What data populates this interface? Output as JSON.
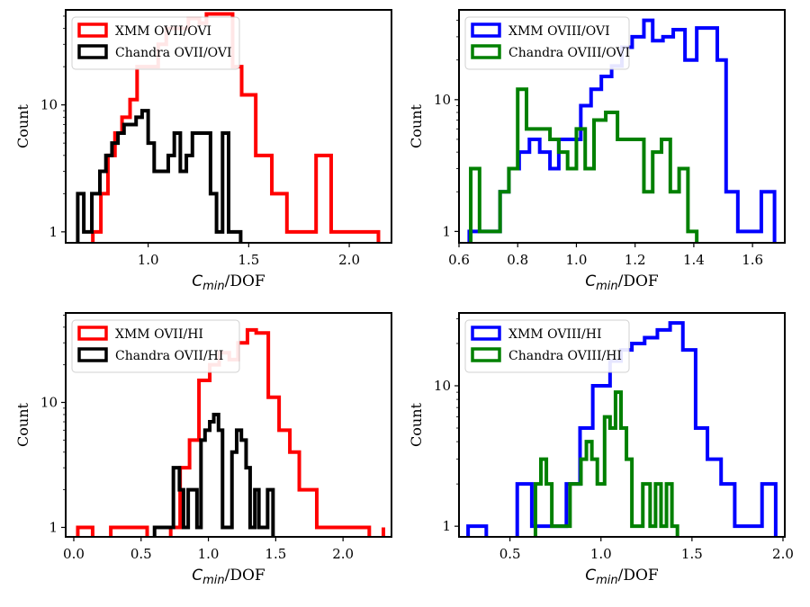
{
  "chart_data": [
    {
      "type": "histogram",
      "xscale": "linear",
      "yscale": "log",
      "xlim": [
        0.59,
        2.21
      ],
      "ylim": [
        0.82,
        56
      ],
      "xticks": [
        1.0,
        1.5,
        2.0
      ],
      "xtick_labels": [
        "1.0",
        "1.5",
        "2.0"
      ],
      "yticks": [
        1,
        10
      ],
      "ytick_labels": [
        "1",
        "10"
      ],
      "xlabel_main": "C",
      "xlabel_sub": "min",
      "xlabel_rest": "/DOF",
      "ylabel": "Count",
      "legend_position": "top-left",
      "series": [
        {
          "name": "XMM OVII/OVI",
          "color": "#ff0000",
          "edges": [
            0.725,
            0.765,
            0.8,
            0.835,
            0.87,
            0.91,
            0.945,
            1.05,
            1.09,
            1.2,
            1.255,
            1.29,
            1.42,
            1.465,
            1.535,
            1.615,
            1.69,
            1.76,
            1.835,
            1.91,
            1.99,
            2.07,
            2.145
          ],
          "counts": [
            1,
            2,
            4,
            6,
            8,
            11,
            20,
            30,
            40,
            48,
            44,
            52,
            20,
            12,
            4,
            2,
            1,
            1,
            4,
            1,
            1,
            1
          ]
        },
        {
          "name": "Chandra OVII/OVI",
          "color": "#000000",
          "edges": [
            0.65,
            0.68,
            0.72,
            0.76,
            0.79,
            0.82,
            0.85,
            0.88,
            0.91,
            0.94,
            0.97,
            1.0,
            1.03,
            1.07,
            1.1,
            1.13,
            1.16,
            1.19,
            1.22,
            1.25,
            1.28,
            1.31,
            1.34,
            1.37,
            1.4,
            1.43,
            1.46
          ],
          "counts": [
            2,
            1,
            2,
            3,
            4,
            5,
            6,
            7,
            7,
            8,
            9,
            5,
            3,
            3,
            4,
            6,
            3,
            4,
            6,
            6,
            6,
            2,
            1,
            6,
            1,
            1
          ]
        }
      ]
    },
    {
      "type": "histogram",
      "xscale": "linear",
      "yscale": "log",
      "xlim": [
        0.6,
        1.71
      ],
      "ylim": [
        0.82,
        48
      ],
      "xticks": [
        0.6,
        0.8,
        1.0,
        1.2,
        1.4,
        1.6
      ],
      "xtick_labels": [
        "0.6",
        "0.8",
        "1.0",
        "1.2",
        "1.4",
        "1.6"
      ],
      "yticks": [
        1,
        10
      ],
      "ytick_labels": [
        "1",
        "10"
      ],
      "xlabel_main": "C",
      "xlabel_sub": "min",
      "xlabel_rest": "/DOF",
      "ylabel": "Count",
      "legend_position": "top-left",
      "series": [
        {
          "name": "XMM OVIII/OVI",
          "color": "#0000ff",
          "edges": [
            0.635,
            0.665,
            0.7,
            0.74,
            0.77,
            0.805,
            0.84,
            0.875,
            0.91,
            0.94,
            0.975,
            1.015,
            1.05,
            1.085,
            1.12,
            1.155,
            1.19,
            1.23,
            1.26,
            1.295,
            1.33,
            1.37,
            1.41,
            1.445,
            1.48,
            1.51,
            1.55,
            1.59,
            1.63,
            1.675
          ],
          "counts": [
            1,
            1,
            1,
            2,
            3,
            4,
            5,
            4,
            3,
            5,
            5,
            9,
            12,
            15,
            18,
            25,
            30,
            40,
            28,
            30,
            34,
            20,
            35,
            35,
            20,
            2,
            1,
            1,
            2
          ]
        },
        {
          "name": "Chandra OVIII/OVI",
          "color": "#008000",
          "edges": [
            0.64,
            0.67,
            0.7,
            0.74,
            0.77,
            0.8,
            0.83,
            0.87,
            0.91,
            0.94,
            0.97,
            1.0,
            1.03,
            1.06,
            1.1,
            1.14,
            1.17,
            1.2,
            1.23,
            1.26,
            1.29,
            1.32,
            1.35,
            1.38,
            1.41
          ],
          "counts": [
            3,
            1,
            1,
            2,
            3,
            12,
            6,
            6,
            5,
            4,
            3,
            6,
            3,
            7,
            8,
            5,
            5,
            5,
            2,
            4,
            5,
            2,
            3,
            1
          ]
        }
      ]
    },
    {
      "type": "histogram",
      "xscale": "linear",
      "yscale": "log",
      "xlim": [
        -0.06,
        2.36
      ],
      "ylim": [
        0.84,
        52
      ],
      "xticks": [
        0.0,
        0.5,
        1.0,
        1.5,
        2.0
      ],
      "xtick_labels": [
        "0.0",
        "0.5",
        "1.0",
        "1.5",
        "2.0"
      ],
      "yticks": [
        1,
        10
      ],
      "ytick_labels": [
        "1",
        "10"
      ],
      "xlabel_main": "C",
      "xlabel_sub": "min",
      "xlabel_rest": "/DOF",
      "ylabel": "Count",
      "legend_position": "top-left",
      "series": [
        {
          "name": "XMM OVII/HI",
          "color": "#ff0000",
          "edges": [
            0.03,
            0.14,
            0.275,
            0.545,
            0.72,
            0.79,
            0.86,
            0.93,
            1.01,
            1.08,
            1.155,
            1.22,
            1.29,
            1.355,
            1.445,
            1.525,
            1.605,
            1.675,
            1.805,
            2.195,
            2.3
          ],
          "counts": [
            1,
            0,
            1,
            0,
            1,
            3,
            5,
            15,
            20,
            25,
            22,
            30,
            38,
            36,
            11,
            6,
            4,
            2,
            1,
            0,
            1
          ]
        },
        {
          "name": "Chandra OVII/HI",
          "color": "#000000",
          "edges": [
            0.6,
            0.74,
            0.785,
            0.815,
            0.85,
            0.885,
            0.915,
            0.945,
            0.975,
            1.01,
            1.04,
            1.075,
            1.105,
            1.14,
            1.175,
            1.21,
            1.245,
            1.28,
            1.31,
            1.345,
            1.375,
            1.41,
            1.44,
            1.48
          ],
          "counts": [
            1,
            3,
            2,
            1,
            2,
            2,
            1,
            5,
            6,
            7,
            8,
            6,
            1,
            1,
            4,
            6,
            5,
            3,
            1,
            2,
            1,
            1,
            2
          ]
        }
      ]
    },
    {
      "type": "histogram",
      "xscale": "linear",
      "yscale": "log",
      "xlim": [
        0.22,
        2.01
      ],
      "ylim": [
        0.84,
        33
      ],
      "xticks": [
        0.5,
        1.0,
        1.5,
        2.0
      ],
      "xtick_labels": [
        "0.5",
        "1.0",
        "1.5",
        "2.0"
      ],
      "yticks": [
        1,
        10
      ],
      "ytick_labels": [
        "1",
        "10"
      ],
      "xlabel_main": "C",
      "xlabel_sub": "min",
      "xlabel_rest": "/DOF",
      "ylabel": "Count",
      "legend_position": "top-left",
      "series": [
        {
          "name": "XMM OVIII/HI",
          "color": "#0000ff",
          "edges": [
            0.27,
            0.37,
            0.54,
            0.62,
            0.81,
            0.885,
            0.955,
            1.05,
            1.11,
            1.17,
            1.24,
            1.31,
            1.38,
            1.45,
            1.52,
            1.585,
            1.66,
            1.735,
            1.795,
            1.885,
            1.96
          ],
          "counts": [
            1,
            0,
            2,
            1,
            2,
            5,
            10,
            15,
            18,
            20,
            22,
            25,
            28,
            18,
            5,
            3,
            2,
            1,
            1,
            2
          ]
        },
        {
          "name": "Chandra OVIII/HI",
          "color": "#008000",
          "edges": [
            0.64,
            0.67,
            0.7,
            0.73,
            0.76,
            0.8,
            0.83,
            0.86,
            0.89,
            0.92,
            0.95,
            0.98,
            1.02,
            1.05,
            1.08,
            1.11,
            1.14,
            1.17,
            1.2,
            1.23,
            1.27,
            1.3,
            1.33,
            1.36,
            1.39,
            1.42
          ],
          "counts": [
            2,
            3,
            2,
            1,
            1,
            1,
            2,
            2,
            3,
            4,
            3,
            2,
            6,
            5,
            9,
            5,
            3,
            1,
            1,
            2,
            1,
            2,
            1,
            2,
            1
          ]
        }
      ]
    }
  ]
}
